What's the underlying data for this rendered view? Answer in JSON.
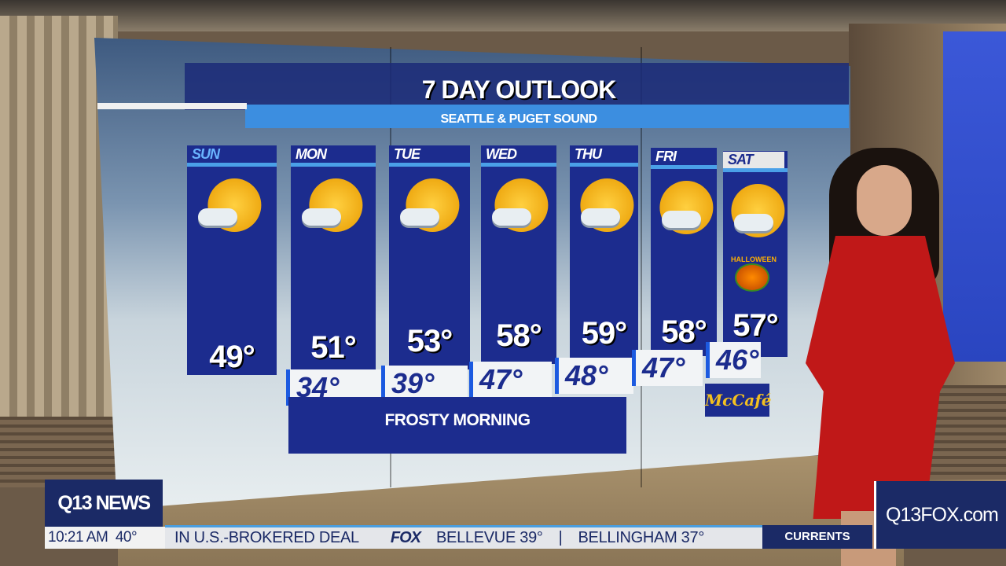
{
  "forecast": {
    "title": "7 DAY OUTLOOK",
    "subtitle": "SEATTLE & PUGET SOUND",
    "days": [
      {
        "day": "SUN",
        "icon": "partly-sunny-icon",
        "high": "49°",
        "low": null
      },
      {
        "day": "MON",
        "icon": "partly-sunny-icon",
        "high": "51°",
        "low": "34°"
      },
      {
        "day": "TUE",
        "icon": "partly-sunny-icon",
        "high": "53°",
        "low": "39°"
      },
      {
        "day": "WED",
        "icon": "mostly-cloudy-icon",
        "high": "58°",
        "low": "47°"
      },
      {
        "day": "THU",
        "icon": "cloudy-showers-icon",
        "high": "59°",
        "low": "48°"
      },
      {
        "day": "FRI",
        "icon": "cloudy-showers-icon",
        "high": "58°",
        "low": "47°"
      },
      {
        "day": "SAT",
        "icon": "mostly-cloudy-icon",
        "high": "57°",
        "low": "46°",
        "badge": "HALLOWEEN"
      }
    ],
    "note": "FROSTY MORNING",
    "sponsor": "McCafé"
  },
  "lower_third": {
    "logo": "Q13 NEWS",
    "time": "10:21 AM",
    "temp": "40°",
    "ticker": [
      "IN U.S.-BROKERED DEAL",
      "FOX",
      "BELLEVUE 39°",
      "|",
      "BELLINGHAM 37°"
    ],
    "segment": "CURRENTS",
    "website": "Q13FOX.com"
  },
  "colors": {
    "navy": "#1c2c8e",
    "accent": "#4aa0e8",
    "dress": "#c01818"
  }
}
